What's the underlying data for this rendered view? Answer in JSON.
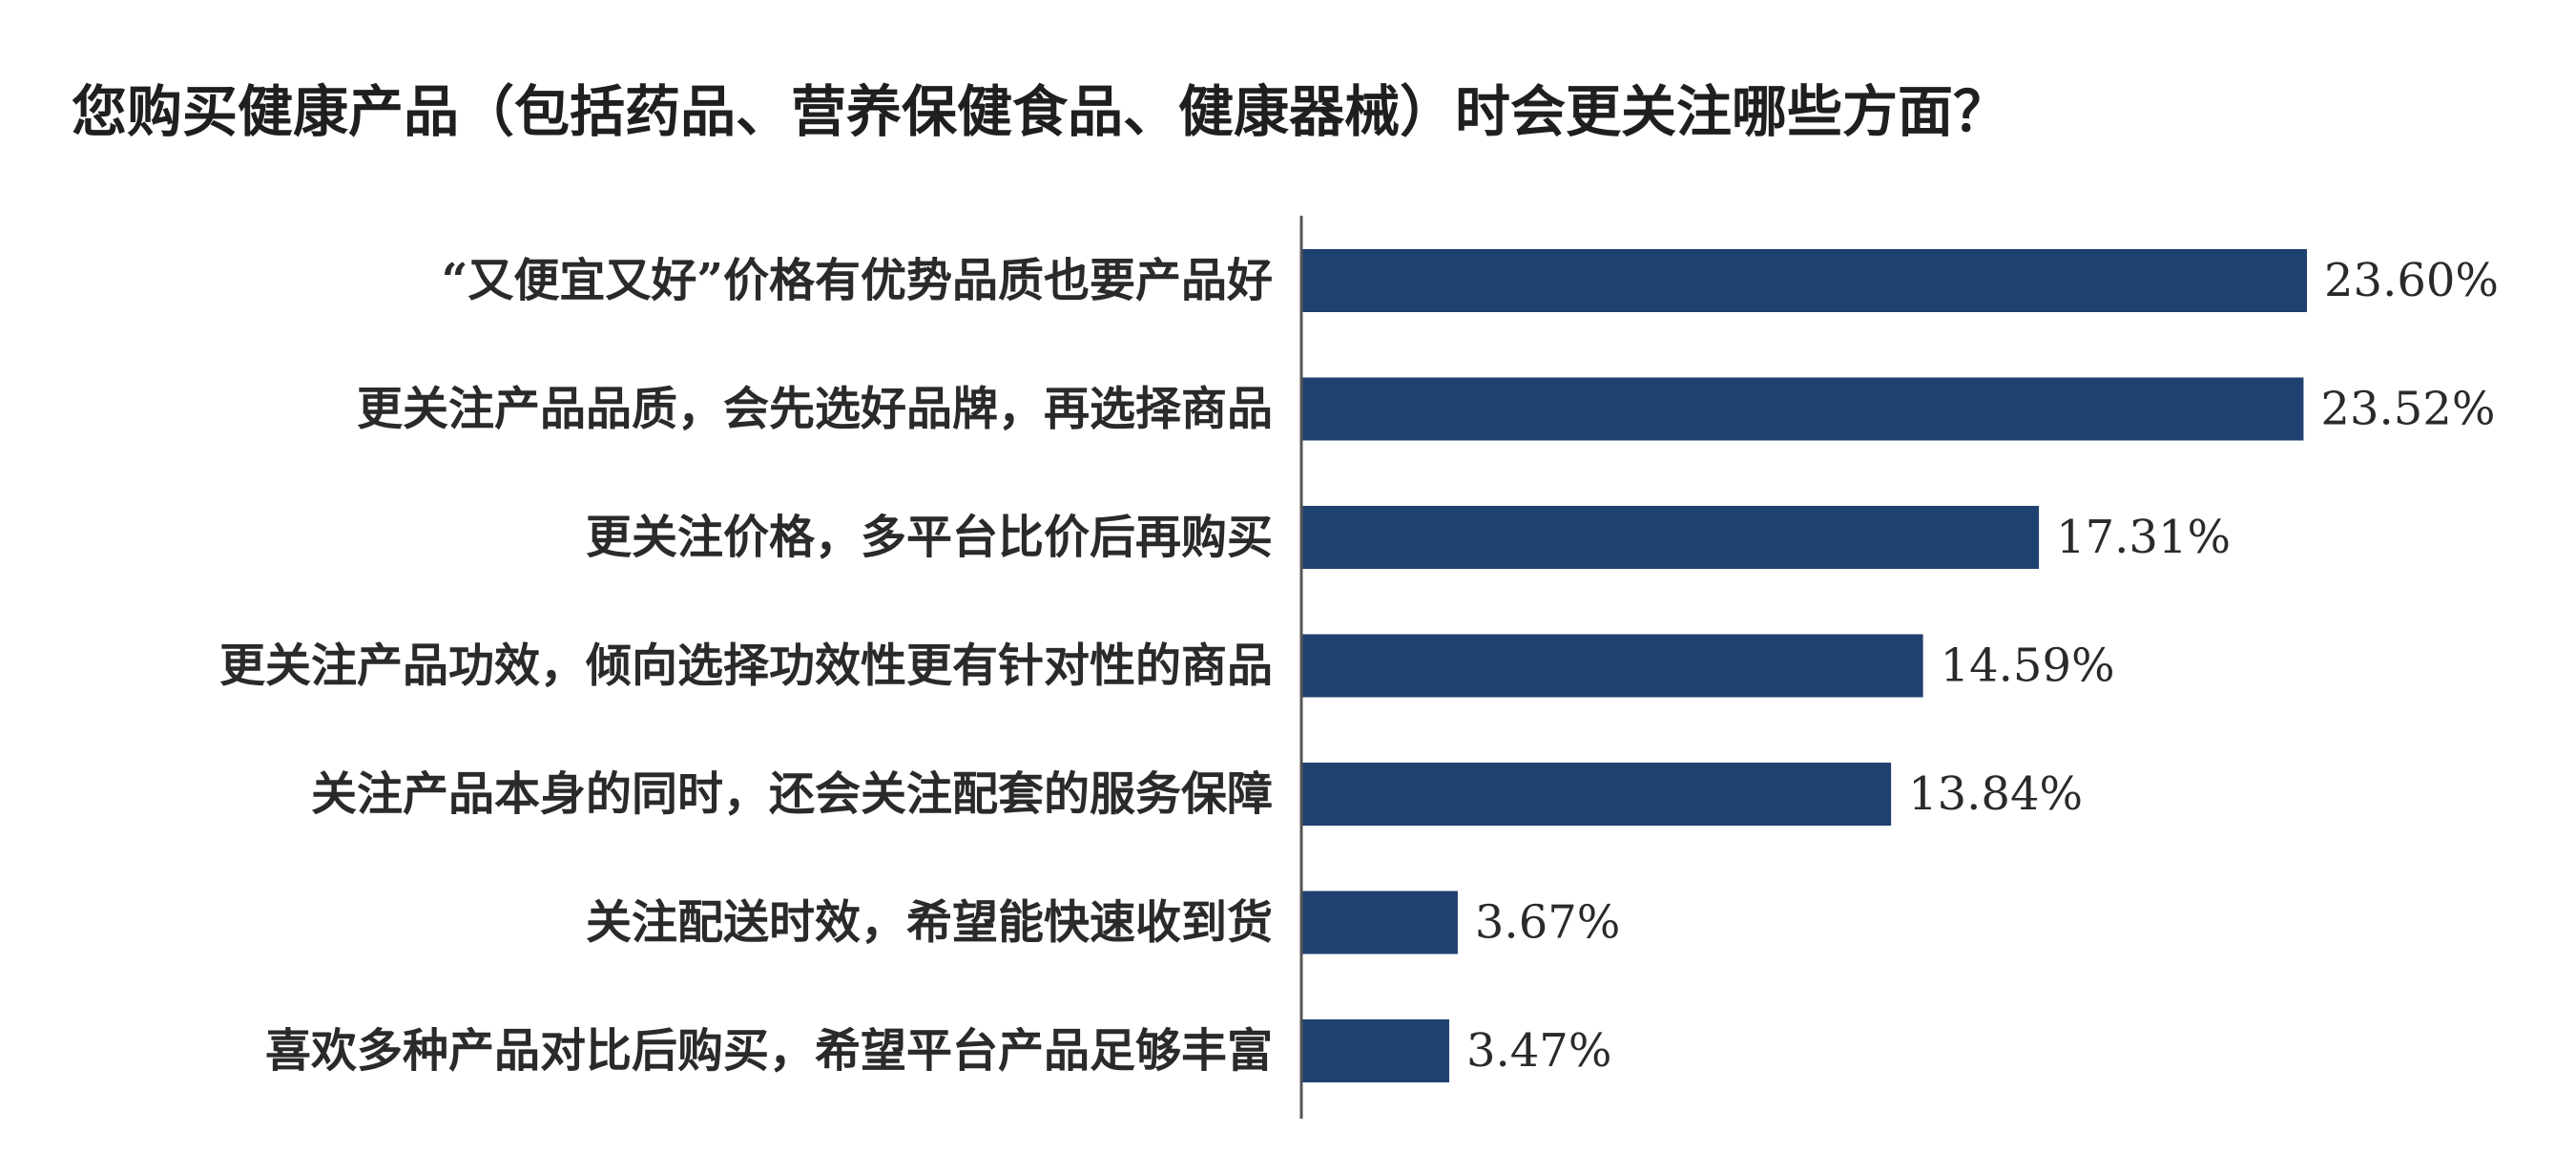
{
  "chart_data": {
    "type": "bar",
    "orientation": "horizontal",
    "title": "您购买健康产品（包括药品、营养保健食品、健康器械）时会更关注哪些方面？",
    "categories": [
      "“又便宜又好”价格有优势品质也要产品好",
      "更关注产品品质，会先选好品牌，再选择商品",
      "更关注价格，多平台比价后再购买",
      "更关注产品功效，倾向选择功效性更有针对性的商品",
      "关注产品本身的同时，还会关注配套的服务保障",
      "关注配送时效，希望能快速收到货",
      "喜欢多种产品对比后购买，希望平台产品足够丰富"
    ],
    "values": [
      23.6,
      23.52,
      17.31,
      14.59,
      13.84,
      3.67,
      3.47
    ],
    "value_labels": [
      "23.60%",
      "23.52%",
      "17.31%",
      "14.59%",
      "13.84%",
      "3.67%",
      "3.47%"
    ],
    "xlim": [
      0,
      23.6
    ],
    "grid": false,
    "legend": "none",
    "colors": {
      "bar": "#1f416f",
      "axis": "#555555",
      "text": "#2a2a2a"
    }
  }
}
